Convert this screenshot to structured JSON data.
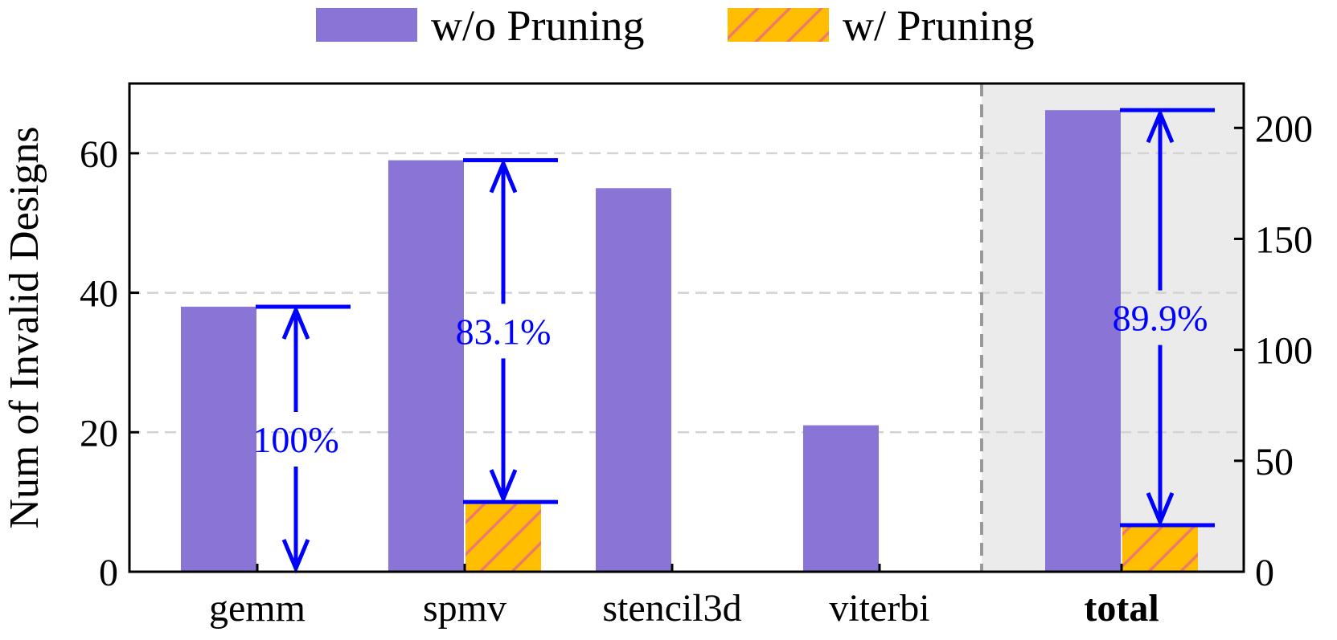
{
  "chart_data": {
    "type": "bar",
    "categories": [
      "gemm",
      "spmv",
      "stencil3d",
      "viterbi",
      "total"
    ],
    "bold_categories": [
      "total"
    ],
    "ylabel": "Num of Invalid Designs",
    "ylim": [
      0,
      70
    ],
    "yticks": [
      0,
      20,
      40,
      60
    ],
    "y2lim": [
      0,
      220
    ],
    "y2ticks": [
      0,
      50,
      100,
      150,
      200
    ],
    "right_axis_categories": [
      "total"
    ],
    "highlighted_category": "total",
    "grid": true,
    "legend_position": "top-center",
    "series": [
      {
        "name": "w/o Pruning",
        "values": [
          38,
          59,
          55,
          21,
          208
        ],
        "color": "#8a74d6"
      },
      {
        "name": "w/ Pruning",
        "values": [
          0,
          10,
          0,
          0,
          21
        ],
        "color": "#ffbf00",
        "hatch_color": "#f07a6a"
      }
    ],
    "annotations": [
      {
        "category": "gemm",
        "text": "100%",
        "from": 38,
        "to": 0
      },
      {
        "category": "spmv",
        "text": "83.1%",
        "from": 59,
        "to": 10
      },
      {
        "category": "total",
        "text": "89.9%",
        "from": 208,
        "to": 21
      }
    ],
    "annotation_color": "#0000ff",
    "highlight_bg": "#ebebeb"
  }
}
